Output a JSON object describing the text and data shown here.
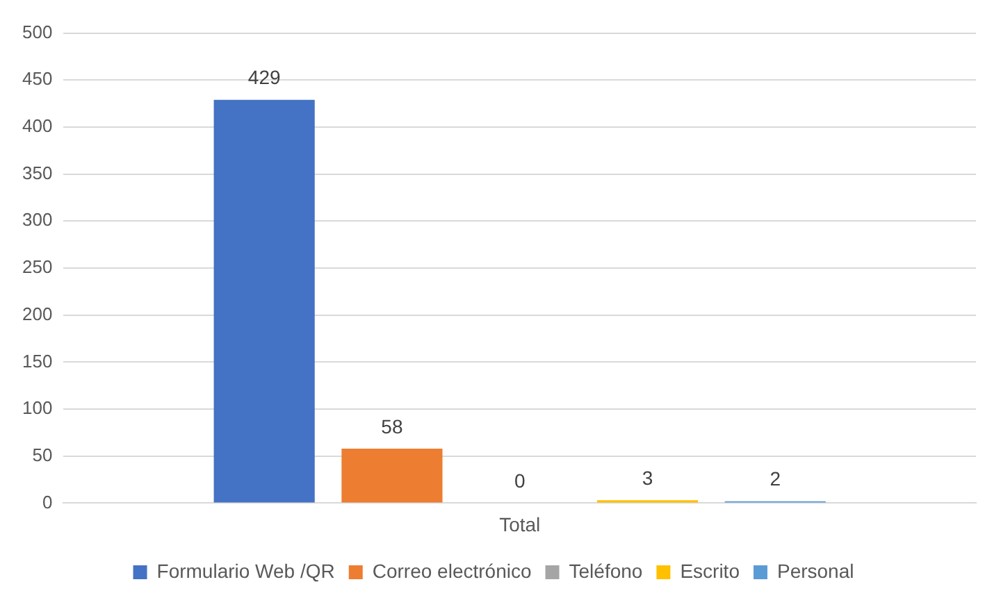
{
  "chart_data": {
    "type": "bar",
    "categories": [
      "Total"
    ],
    "series": [
      {
        "name": "Formulario Web /QR",
        "color": "#4472c4",
        "values": [
          429
        ]
      },
      {
        "name": "Correo electrónico",
        "color": "#ed7d31",
        "values": [
          58
        ]
      },
      {
        "name": "Teléfono",
        "color": "#a5a5a5",
        "values": [
          0
        ]
      },
      {
        "name": "Escrito",
        "color": "#ffc000",
        "values": [
          3
        ]
      },
      {
        "name": "Personal",
        "color": "#5b9bd5",
        "values": [
          2
        ]
      }
    ],
    "ylim": [
      0,
      500
    ],
    "yticks": [
      0,
      50,
      100,
      150,
      200,
      250,
      300,
      350,
      400,
      450,
      500
    ],
    "grid": "y",
    "legend": "bottom",
    "data_labels": true
  }
}
